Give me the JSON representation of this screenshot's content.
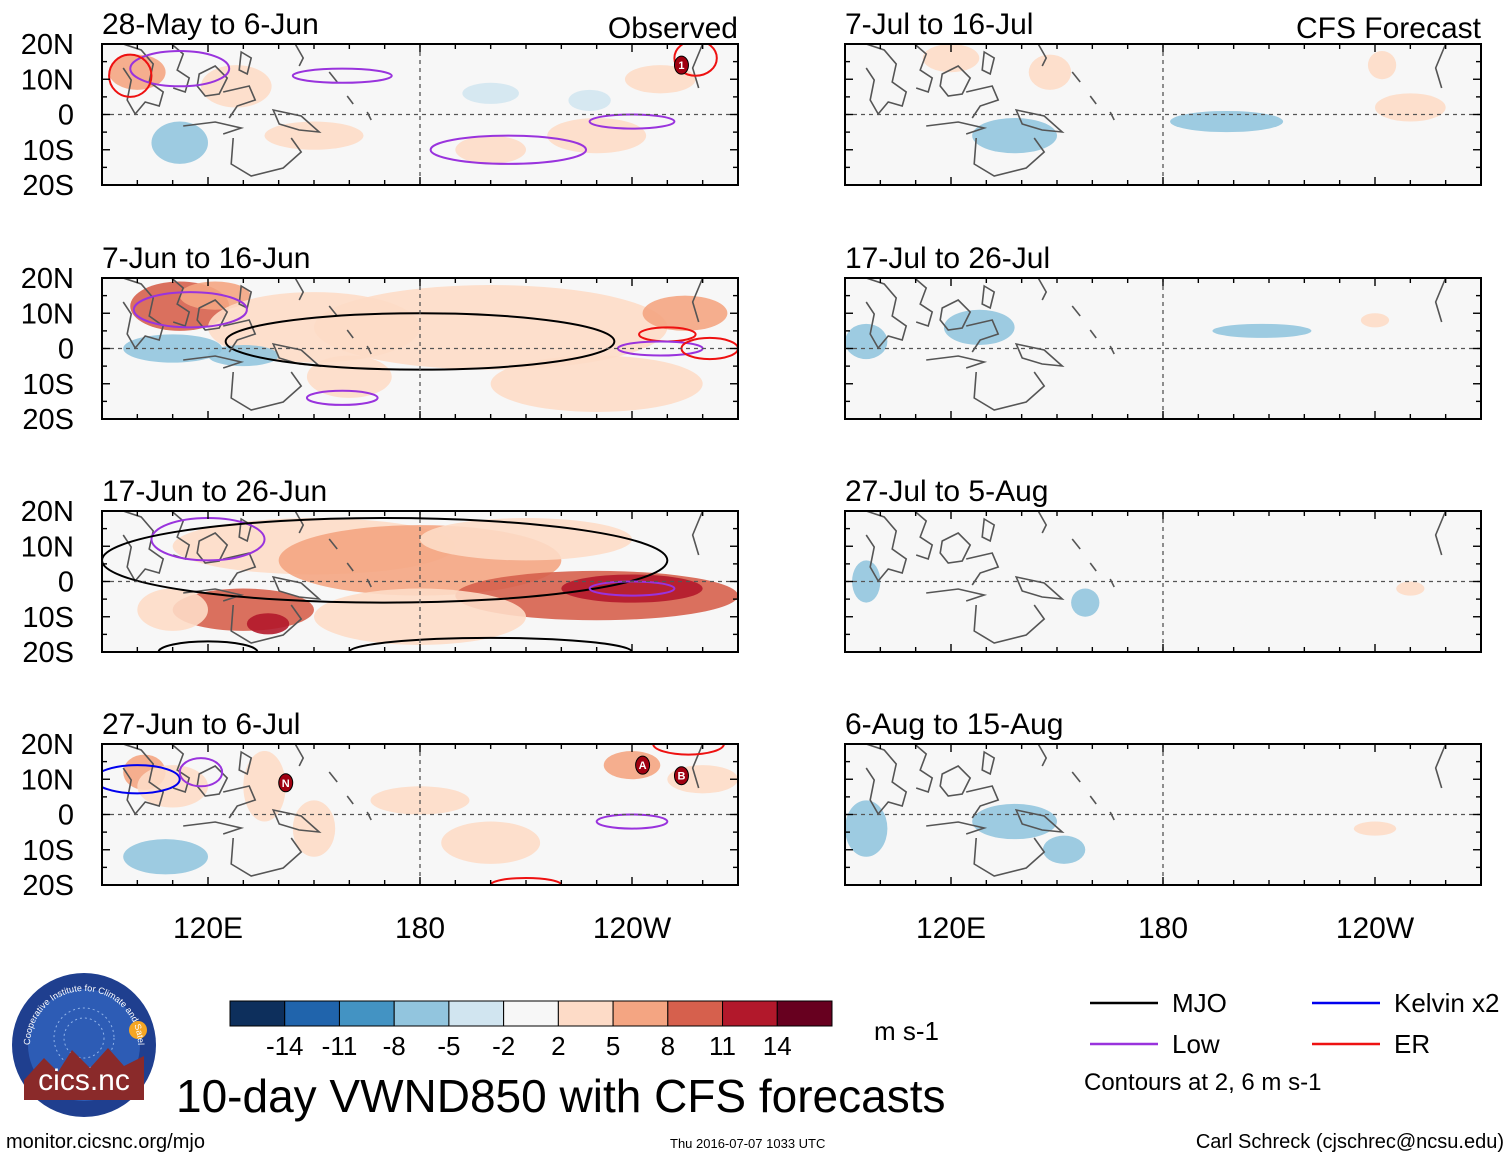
{
  "chart_data": {
    "type": "heatmap",
    "title": "10-day VWND850 with CFS forecasts",
    "variable": "VWND850",
    "units": "m s-1",
    "x_tick_labels": [
      "120E",
      "180",
      "120W"
    ],
    "x_ticks_deg": [
      120,
      180,
      240
    ],
    "x_range_deg": [
      90,
      270
    ],
    "y_tick_labels": [
      "20N",
      "10N",
      "0",
      "10S",
      "20S"
    ],
    "y_ticks_deg": [
      20,
      10,
      0,
      -10,
      -20
    ],
    "y_range_deg": [
      -20,
      20
    ],
    "columns": [
      {
        "label": "Observed",
        "panels": [
          "28-May to 6-Jun",
          "7-Jun to 16-Jun",
          "17-Jun to 26-Jun",
          "27-Jun to 6-Jul"
        ]
      },
      {
        "label": "CFS Forecast",
        "panels": [
          "7-Jul to 16-Jul",
          "17-Jul to 26-Jul",
          "27-Jul to 5-Aug",
          "6-Aug to 15-Aug"
        ]
      }
    ],
    "colorbar": {
      "tick_labels": [
        "-14",
        "-11",
        "-8",
        "-5",
        "-2",
        "2",
        "5",
        "8",
        "11",
        "14"
      ],
      "colors": [
        "#0d2f5c",
        "#2064ac",
        "#4393c3",
        "#92c5de",
        "#d1e5f0",
        "#f7f7f7",
        "#fddbc7",
        "#f4a582",
        "#d6604d",
        "#b2182b",
        "#67001f"
      ]
    },
    "legend": [
      {
        "label": "MJO",
        "color": "#000000"
      },
      {
        "label": "Kelvin x2",
        "color": "#0000ee"
      },
      {
        "label": "Low",
        "color": "#9933dd"
      },
      {
        "label": "ER",
        "color": "#ee1111"
      }
    ],
    "contour_note": "Contours at 2, 6 m s-1",
    "storm_labels": [
      "1",
      "N",
      "A",
      "B"
    ]
  },
  "footer": {
    "logo_text": "cics.nc",
    "logo_ring_text": "Cooperative Institute for Climate and Satellites",
    "url": "monitor.cicsnc.org/mjo",
    "timestamp": "Thu 2016-07-07 1033 UTC",
    "credit": "Carl Schreck (cjschrec@ncsu.edu)"
  }
}
